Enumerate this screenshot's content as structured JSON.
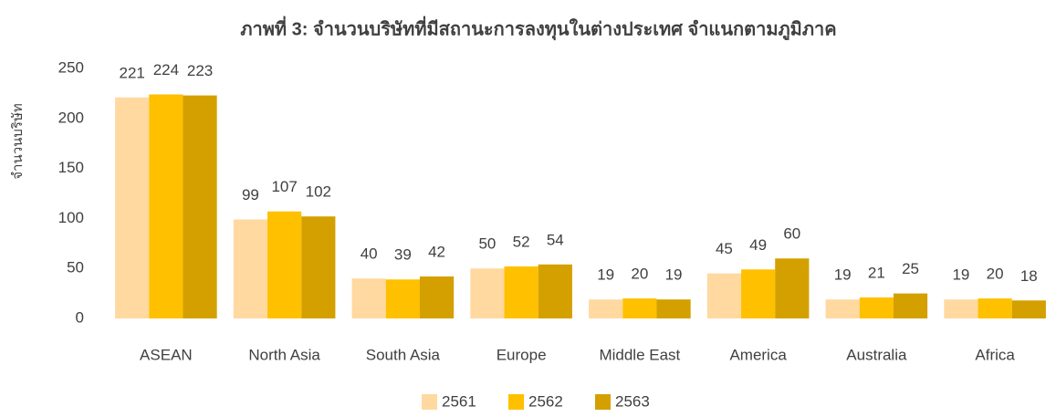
{
  "chart_data": {
    "type": "bar",
    "title": "ภาพที่ 3: จำนวนบริษัทที่มีสถานะการลงทุนในต่างประเทศ จำแนกตามภูมิภาค",
    "y_label": "จำนวนบริษัท",
    "categories": [
      "ASEAN",
      "North Asia",
      "South Asia",
      "Europe",
      "Middle East",
      "America",
      "Australia",
      "Africa"
    ],
    "series": [
      {
        "name": "2561",
        "color": "#FFD9A0",
        "values": [
          221,
          99,
          40,
          50,
          19,
          45,
          19,
          19
        ]
      },
      {
        "name": "2562",
        "color": "#FFC000",
        "values": [
          224,
          107,
          39,
          52,
          20,
          49,
          21,
          20
        ]
      },
      {
        "name": "2563",
        "color": "#D4A000",
        "values": [
          223,
          102,
          42,
          54,
          19,
          60,
          25,
          18
        ]
      }
    ],
    "ylim": [
      0,
      250
    ],
    "yticks": [
      0,
      50,
      100,
      150,
      200,
      250
    ],
    "grid": false,
    "legend": "bottom"
  }
}
